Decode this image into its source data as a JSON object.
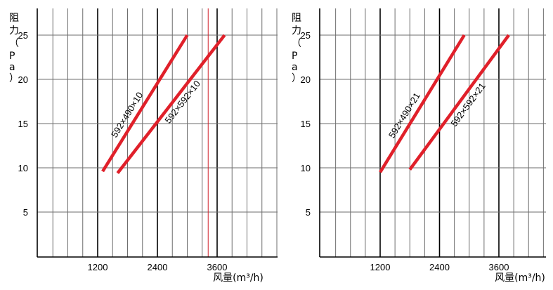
{
  "chart_data": [
    {
      "type": "line",
      "title": "",
      "ylabel": "阻力（Pa）",
      "xlabel": "风量(m³/h)",
      "x_ticks": [
        1200,
        2400,
        3600
      ],
      "y_ticks": [
        5,
        10,
        15,
        20,
        25
      ],
      "xlim": [
        0,
        4800
      ],
      "ylim": [
        0,
        28
      ],
      "grid": true,
      "series": [
        {
          "name": "592×490×10",
          "color": "#e0202a",
          "x": [
            1300,
            3000
          ],
          "y": [
            9.6,
            25
          ]
        },
        {
          "name": "592×592×10",
          "color": "#e0202a",
          "x": [
            1600,
            3750
          ],
          "y": [
            9.4,
            25
          ]
        }
      ]
    },
    {
      "type": "line",
      "title": "",
      "ylabel": "阻力（Pa）",
      "xlabel": "风量(m³/h)",
      "x_ticks": [
        1200,
        2400,
        3600
      ],
      "y_ticks": [
        5,
        10,
        15,
        20,
        25
      ],
      "xlim": [
        0,
        4800
      ],
      "ylim": [
        0,
        28
      ],
      "grid": true,
      "series": [
        {
          "name": "592×490×21",
          "color": "#e0202a",
          "x": [
            1200,
            2900
          ],
          "y": [
            9.5,
            25
          ]
        },
        {
          "name": "592×592×21",
          "color": "#e0202a",
          "x": [
            1800,
            3800
          ],
          "y": [
            9.8,
            25
          ]
        }
      ]
    }
  ]
}
